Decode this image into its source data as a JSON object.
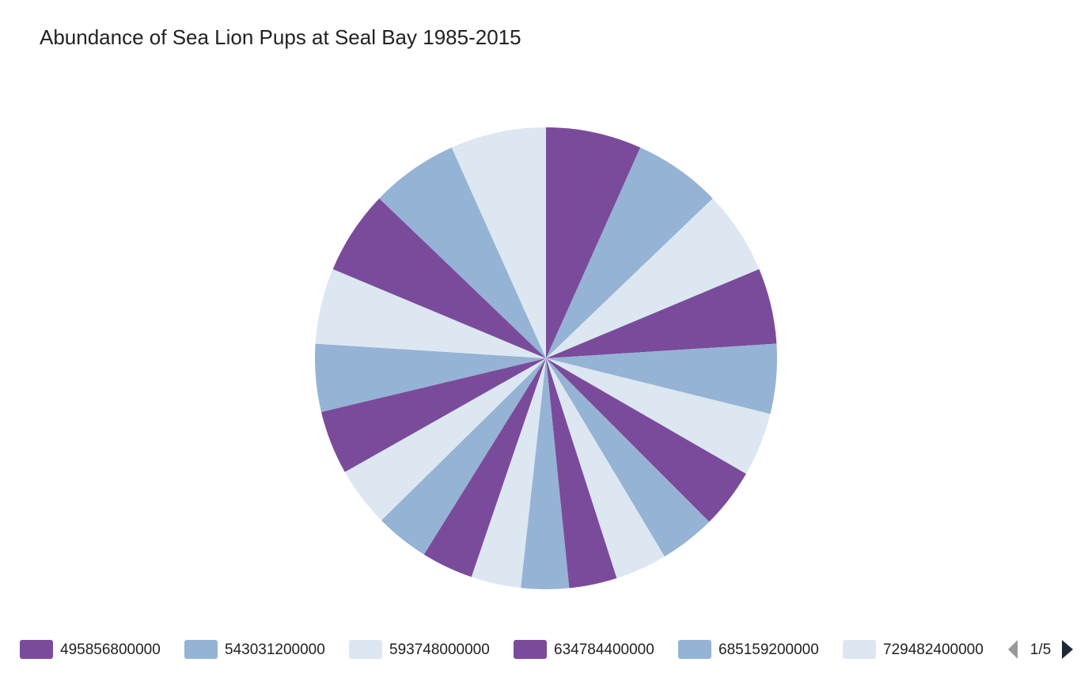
{
  "chart_data": {
    "type": "pie",
    "title": "Abundance of Sea Lion Pups at Seal Bay 1985-2015",
    "categories": [
      "495856800000",
      "543031200000",
      "593748000000",
      "634784400000",
      "685159200000",
      "729482400000",
      null,
      null,
      null,
      null,
      null,
      null,
      null,
      null,
      null,
      null,
      null,
      null,
      null,
      null,
      null
    ],
    "values": [
      24,
      22,
      21,
      19,
      17.5,
      16,
      15,
      14,
      13,
      12,
      12,
      12.5,
      13,
      13.5,
      15,
      16,
      17,
      19,
      21,
      22,
      24
    ],
    "colors": [
      "#7b4b9b",
      "#95b3d5",
      "#dce7f2"
    ],
    "legend_page": "1/5"
  }
}
